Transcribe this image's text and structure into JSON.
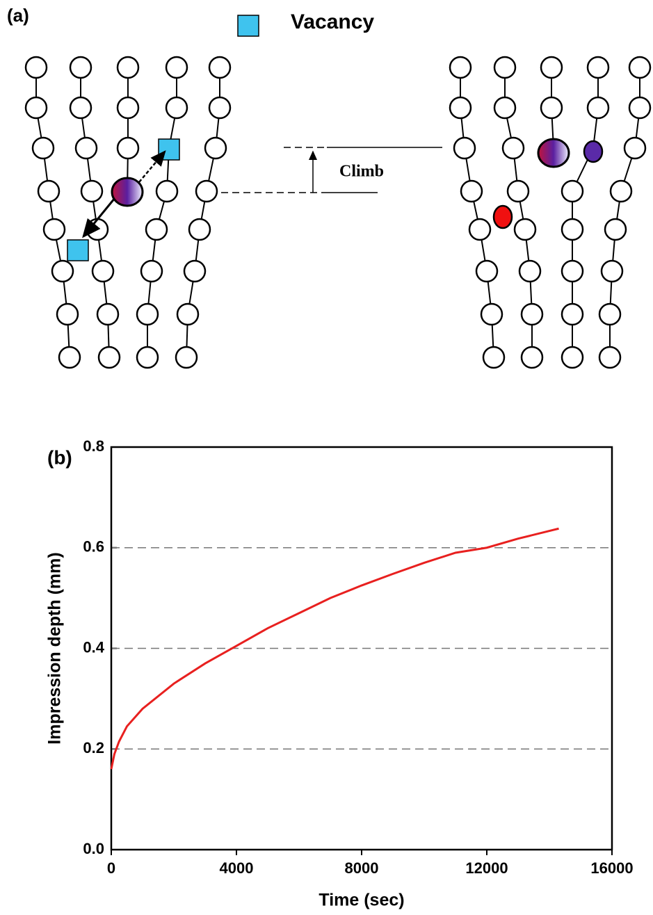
{
  "panel_a": {
    "label": "(a)",
    "legend": "Vacancy",
    "annotation": "Climb"
  },
  "chart_data": {
    "type": "line",
    "panel_label": "(b)",
    "x_label": "Time (sec)",
    "y_label": "Impression depth (mm)",
    "x": [
      0,
      100,
      250,
      500,
      1000,
      2000,
      3000,
      4000,
      5000,
      6000,
      7000,
      8000,
      9000,
      10000,
      11000,
      12000,
      13000,
      14300
    ],
    "values": [
      0.16,
      0.19,
      0.215,
      0.245,
      0.28,
      0.33,
      0.37,
      0.405,
      0.44,
      0.47,
      0.5,
      0.525,
      0.548,
      0.57,
      0.59,
      0.6,
      0.618,
      0.638
    ],
    "color": "#e8201f",
    "xlim": [
      0,
      16000
    ],
    "xticks": [
      0,
      4000,
      8000,
      12000,
      16000
    ],
    "ylim": [
      0,
      0.8
    ],
    "yticks": [
      {
        "value": 0,
        "label": "0.0"
      },
      0.2,
      0.4,
      0.6,
      0.8
    ],
    "grid": true
  }
}
